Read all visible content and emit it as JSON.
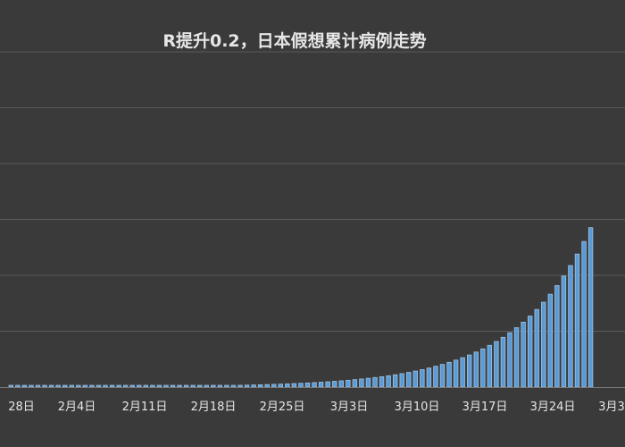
{
  "chart_data": {
    "type": "bar",
    "title": "R提升0.2，日本假想累计病例走势",
    "x_tick_labels": [
      "28日",
      "2月4日",
      "2月11日",
      "2月18日",
      "2月25日",
      "3月3日",
      "3月10日",
      "3月17日",
      "3月24日",
      "3月3"
    ],
    "start_offset_label_note": "",
    "values": [
      1.0,
      1.0,
      1.0,
      1.0,
      1.1,
      1.1,
      1.2,
      1.2,
      1.3,
      1.4,
      1.5,
      1.6,
      1.7,
      1.8,
      1.9,
      2.0,
      2.1,
      2.3,
      2.4,
      2.6,
      2.8,
      3.0,
      3.2,
      3.4,
      3.7,
      4.0,
      4.3,
      4.6,
      5.0,
      5.4,
      5.8,
      6.3,
      6.8,
      7.4,
      8.0,
      8.7,
      9.4,
      10.2,
      11.1,
      12.0,
      13.0,
      14.1,
      15.3,
      16.6,
      18.0,
      19.6,
      21.3,
      23.2,
      25.2,
      27.4,
      29.8,
      32.4,
      35.3,
      38.4,
      41.8,
      45.5,
      49.6,
      54.0,
      58.8,
      64.1,
      70.0,
      76.3,
      83.2,
      90.8,
      99.0,
      108.0,
      117.8,
      128.5,
      140.2,
      153.0,
      167.0,
      182.3,
      199.0,
      217.3,
      237.4,
      259.4,
      283.5,
      309.9,
      338.8,
      370.5,
      405.2,
      443.2,
      484.9,
      530.6,
      580.7,
      635.6,
      695.8
    ],
    "grid": true,
    "legend": "none",
    "colors": {
      "background": "#3a3a3a",
      "grid": "#5a5a5a",
      "bar": "#5b9bd5",
      "bar_edge": "#9cc3e6",
      "text": "#e6e6e6"
    }
  }
}
